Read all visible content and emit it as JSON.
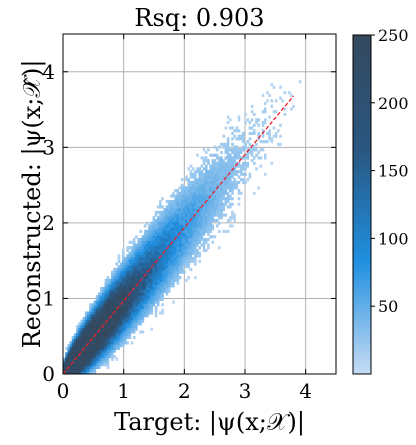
{
  "chart_data": {
    "type": "heatmap",
    "title": "Rsq: 0.903",
    "xlabel": "Target: |ψ(x;𝒳)|",
    "ylabel": "Reconstructed: |ψ(x;𝒳̂)|",
    "xlim": [
      0,
      4.5
    ],
    "ylim": [
      0,
      4.5
    ],
    "xticks": [
      "0",
      "1",
      "2",
      "3",
      "4"
    ],
    "yticks": [
      "0",
      "1",
      "2",
      "3",
      "4"
    ],
    "grid": true,
    "r_squared": 0.903,
    "reference_line": {
      "style": "dashed",
      "color": "#e8202a",
      "x": [
        0,
        3.8
      ],
      "y": [
        0,
        3.68
      ]
    },
    "density": {
      "ridge": [
        {
          "x": 0.0,
          "y": 0.0
        },
        {
          "x": 0.5,
          "y": 0.48
        },
        {
          "x": 1.0,
          "y": 0.98
        },
        {
          "x": 2.0,
          "y": 1.95
        },
        {
          "x": 3.0,
          "y": 2.9
        },
        {
          "x": 3.7,
          "y": 3.6
        }
      ],
      "max_count": 250
    },
    "colorbar": {
      "min": 0,
      "max": 250,
      "ticks": [
        "50",
        "100",
        "150",
        "200",
        "250"
      ],
      "colors": [
        "#c6dcf4",
        "#1f8fe0",
        "#2a5680",
        "#34495e"
      ]
    }
  }
}
